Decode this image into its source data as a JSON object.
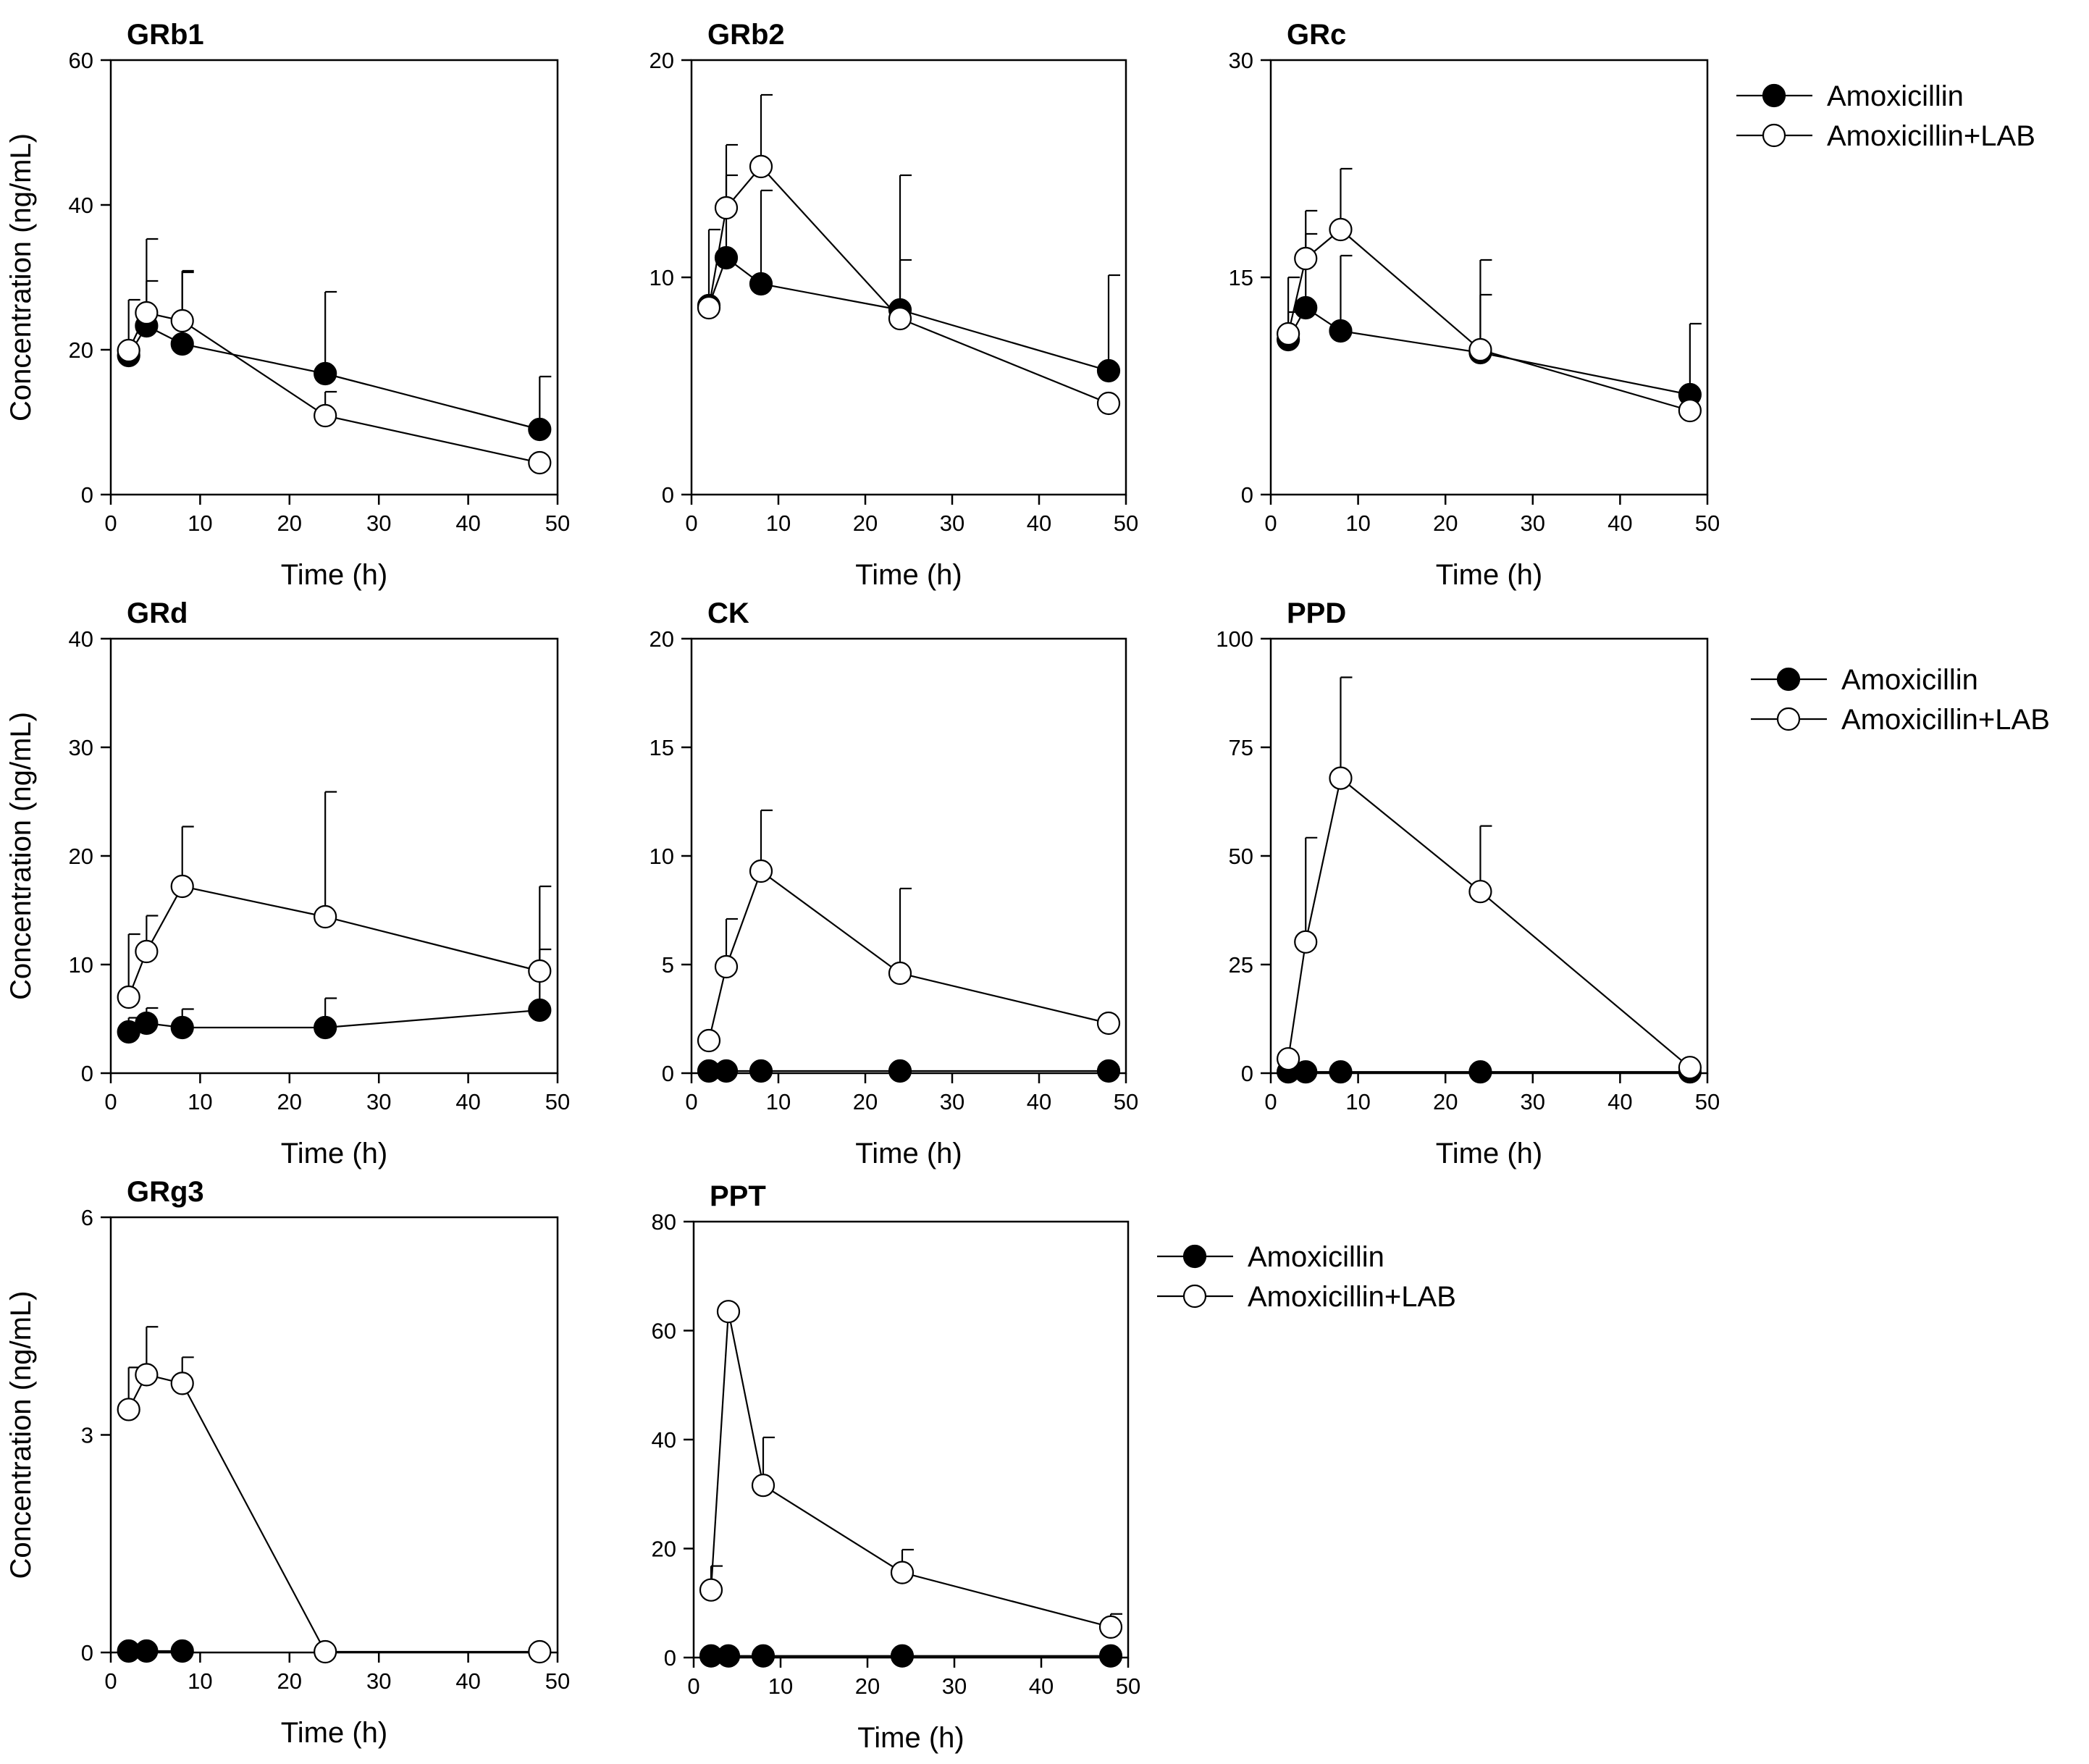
{
  "chart_data": [
    {
      "type": "line",
      "title": "GRb1",
      "xlabel": "Time (h)",
      "ylabel": "Concentration (ng/mL)",
      "xlim": [
        0,
        50
      ],
      "ylim": [
        0,
        60
      ],
      "xticks": [
        "0",
        "10",
        "20",
        "30",
        "40",
        "50"
      ],
      "yticks": [
        "0",
        "20",
        "40",
        "60"
      ],
      "x": [
        2,
        4,
        8,
        24,
        48
      ],
      "series": [
        {
          "name": "Amoxicillin",
          "marker": "filled",
          "values": [
            19.2,
            23.3,
            20.8,
            16.7,
            9.0
          ],
          "errors": [
            0,
            6.2,
            9.9,
            11.3,
            7.3
          ]
        },
        {
          "name": "Amoxicillin+LAB",
          "marker": "open",
          "values": [
            19.9,
            25.1,
            24.0,
            10.9,
            4.4
          ],
          "errors": [
            7.0,
            10.2,
            6.9,
            3.3,
            0
          ]
        }
      ]
    },
    {
      "type": "line",
      "title": "GRb2",
      "xlabel": "Time (h)",
      "ylabel": "",
      "xlim": [
        0,
        50
      ],
      "ylim": [
        0,
        20
      ],
      "xticks": [
        "0",
        "10",
        "20",
        "30",
        "40",
        "50"
      ],
      "yticks": [
        "0",
        "10",
        "20"
      ],
      "x": [
        2,
        4,
        8,
        24,
        48
      ],
      "series": [
        {
          "name": "Amoxicillin",
          "marker": "filled",
          "values": [
            8.7,
            10.9,
            9.7,
            8.5,
            5.7
          ],
          "errors": [
            0,
            3.8,
            4.3,
            2.3,
            4.4
          ]
        },
        {
          "name": "Amoxicillin+LAB",
          "marker": "open",
          "values": [
            8.6,
            13.2,
            15.1,
            8.1,
            4.2
          ],
          "errors": [
            3.6,
            2.9,
            3.3,
            6.6,
            0
          ]
        }
      ]
    },
    {
      "type": "line",
      "title": "GRc",
      "xlabel": "Time (h)",
      "ylabel": "",
      "xlim": [
        0,
        50
      ],
      "ylim": [
        0,
        30
      ],
      "xticks": [
        "0",
        "10",
        "20",
        "30",
        "40",
        "50"
      ],
      "yticks": [
        "0",
        "15",
        "30"
      ],
      "x": [
        2,
        4,
        8,
        24,
        48
      ],
      "series": [
        {
          "name": "Amoxicillin",
          "marker": "filled",
          "values": [
            10.7,
            12.9,
            11.3,
            9.8,
            6.9
          ],
          "errors": [
            1.9,
            5.1,
            5.2,
            4.0,
            4.9
          ]
        },
        {
          "name": "Amoxicillin+LAB",
          "marker": "open",
          "values": [
            11.1,
            16.3,
            18.3,
            10.0,
            5.8
          ],
          "errors": [
            3.9,
            3.3,
            4.2,
            6.2,
            0
          ]
        }
      ]
    },
    {
      "type": "line",
      "title": "GRd",
      "xlabel": "Time (h)",
      "ylabel": "Concentration (ng/mL)",
      "xlim": [
        0,
        50
      ],
      "ylim": [
        0,
        40
      ],
      "xticks": [
        "0",
        "10",
        "20",
        "30",
        "40",
        "50"
      ],
      "yticks": [
        "0",
        "10",
        "20",
        "30",
        "40"
      ],
      "x": [
        2,
        4,
        8,
        24,
        48
      ],
      "series": [
        {
          "name": "Amoxicillin",
          "marker": "filled",
          "values": [
            3.8,
            4.6,
            4.2,
            4.2,
            5.8
          ],
          "errors": [
            1.3,
            1.4,
            1.7,
            2.7,
            5.6
          ]
        },
        {
          "name": "Amoxicillin+LAB",
          "marker": "open",
          "values": [
            7.0,
            11.2,
            17.2,
            14.4,
            9.4
          ],
          "errors": [
            5.8,
            3.3,
            5.5,
            11.5,
            7.8
          ]
        }
      ]
    },
    {
      "type": "line",
      "title": "CK",
      "xlabel": "Time (h)",
      "ylabel": "",
      "xlim": [
        0,
        50
      ],
      "ylim": [
        0,
        20
      ],
      "xticks": [
        "0",
        "10",
        "20",
        "30",
        "40",
        "50"
      ],
      "yticks": [
        "0",
        "5",
        "10",
        "15",
        "20"
      ],
      "x": [
        2,
        4,
        8,
        24,
        48
      ],
      "series": [
        {
          "name": "Amoxicillin",
          "marker": "filled",
          "values": [
            0.1,
            0.1,
            0.1,
            0.1,
            0.1
          ],
          "errors": [
            0,
            0,
            0,
            0,
            0
          ]
        },
        {
          "name": "Amoxicillin+LAB",
          "marker": "open",
          "values": [
            1.5,
            4.9,
            9.3,
            4.6,
            2.3
          ],
          "errors": [
            0,
            2.2,
            2.8,
            3.9,
            0
          ]
        }
      ]
    },
    {
      "type": "line",
      "title": "PPD",
      "xlabel": "Time (h)",
      "ylabel": "",
      "xlim": [
        0,
        50
      ],
      "ylim": [
        0,
        100
      ],
      "xticks": [
        "0",
        "10",
        "20",
        "30",
        "40",
        "50"
      ],
      "yticks": [
        "0",
        "25",
        "50",
        "75",
        "100"
      ],
      "x": [
        2,
        4,
        8,
        24,
        48
      ],
      "series": [
        {
          "name": "Amoxicillin",
          "marker": "filled",
          "values": [
            0.3,
            0.3,
            0.3,
            0.3,
            0.3
          ],
          "errors": [
            0,
            0,
            0,
            0,
            0
          ]
        },
        {
          "name": "Amoxicillin+LAB",
          "marker": "open",
          "values": [
            3.3,
            30.2,
            67.9,
            41.8,
            1.3
          ],
          "errors": [
            0,
            24.0,
            23.2,
            15.1,
            0
          ]
        }
      ]
    },
    {
      "type": "line",
      "title": "GRg3",
      "xlabel": "Time (h)",
      "ylabel": "Concentration (ng/mL)",
      "xlim": [
        0,
        50
      ],
      "ylim": [
        0,
        6
      ],
      "xticks": [
        "0",
        "10",
        "20",
        "30",
        "40",
        "50"
      ],
      "yticks": [
        "0",
        "3",
        "6"
      ],
      "x": [
        2,
        4,
        8,
        24,
        48
      ],
      "series": [
        {
          "name": "Amoxicillin",
          "marker": "filled",
          "x": [
            2,
            4,
            8
          ],
          "values": [
            0.02,
            0.02,
            0.02
          ],
          "errors": [
            0,
            0,
            0
          ]
        },
        {
          "name": "Amoxicillin+LAB",
          "marker": "open",
          "values": [
            3.35,
            3.83,
            3.71,
            0.01,
            0.01
          ],
          "errors": [
            0.58,
            0.66,
            0.36,
            0,
            0
          ]
        }
      ]
    },
    {
      "type": "line",
      "title": "PPT",
      "xlabel": "Time (h)",
      "ylabel": "",
      "xlim": [
        0,
        50
      ],
      "ylim": [
        0,
        80
      ],
      "xticks": [
        "0",
        "10",
        "20",
        "30",
        "40",
        "50"
      ],
      "yticks": [
        "0",
        "20",
        "40",
        "60",
        "80"
      ],
      "x": [
        2,
        4,
        8,
        24,
        48
      ],
      "series": [
        {
          "name": "Amoxicillin",
          "marker": "filled",
          "values": [
            0.3,
            0.3,
            0.3,
            0.3,
            0.3
          ],
          "errors": [
            0,
            0,
            0,
            0,
            0
          ]
        },
        {
          "name": "Amoxicillin+LAB",
          "marker": "open",
          "values": [
            12.4,
            63.5,
            31.6,
            15.6,
            5.6
          ],
          "errors": [
            4.4,
            0,
            8.8,
            4.2,
            2.4
          ]
        }
      ]
    }
  ],
  "legends": [
    {
      "items": [
        {
          "label": "Amoxicillin",
          "marker": "filled"
        },
        {
          "label": "Amoxicillin+LAB",
          "marker": "open"
        }
      ]
    },
    {
      "items": [
        {
          "label": "Amoxicillin",
          "marker": "filled"
        },
        {
          "label": "Amoxicillin+LAB",
          "marker": "open"
        }
      ]
    },
    {
      "items": [
        {
          "label": "Amoxicillin",
          "marker": "filled"
        },
        {
          "label": "Amoxicillin+LAB",
          "marker": "open"
        }
      ]
    }
  ]
}
